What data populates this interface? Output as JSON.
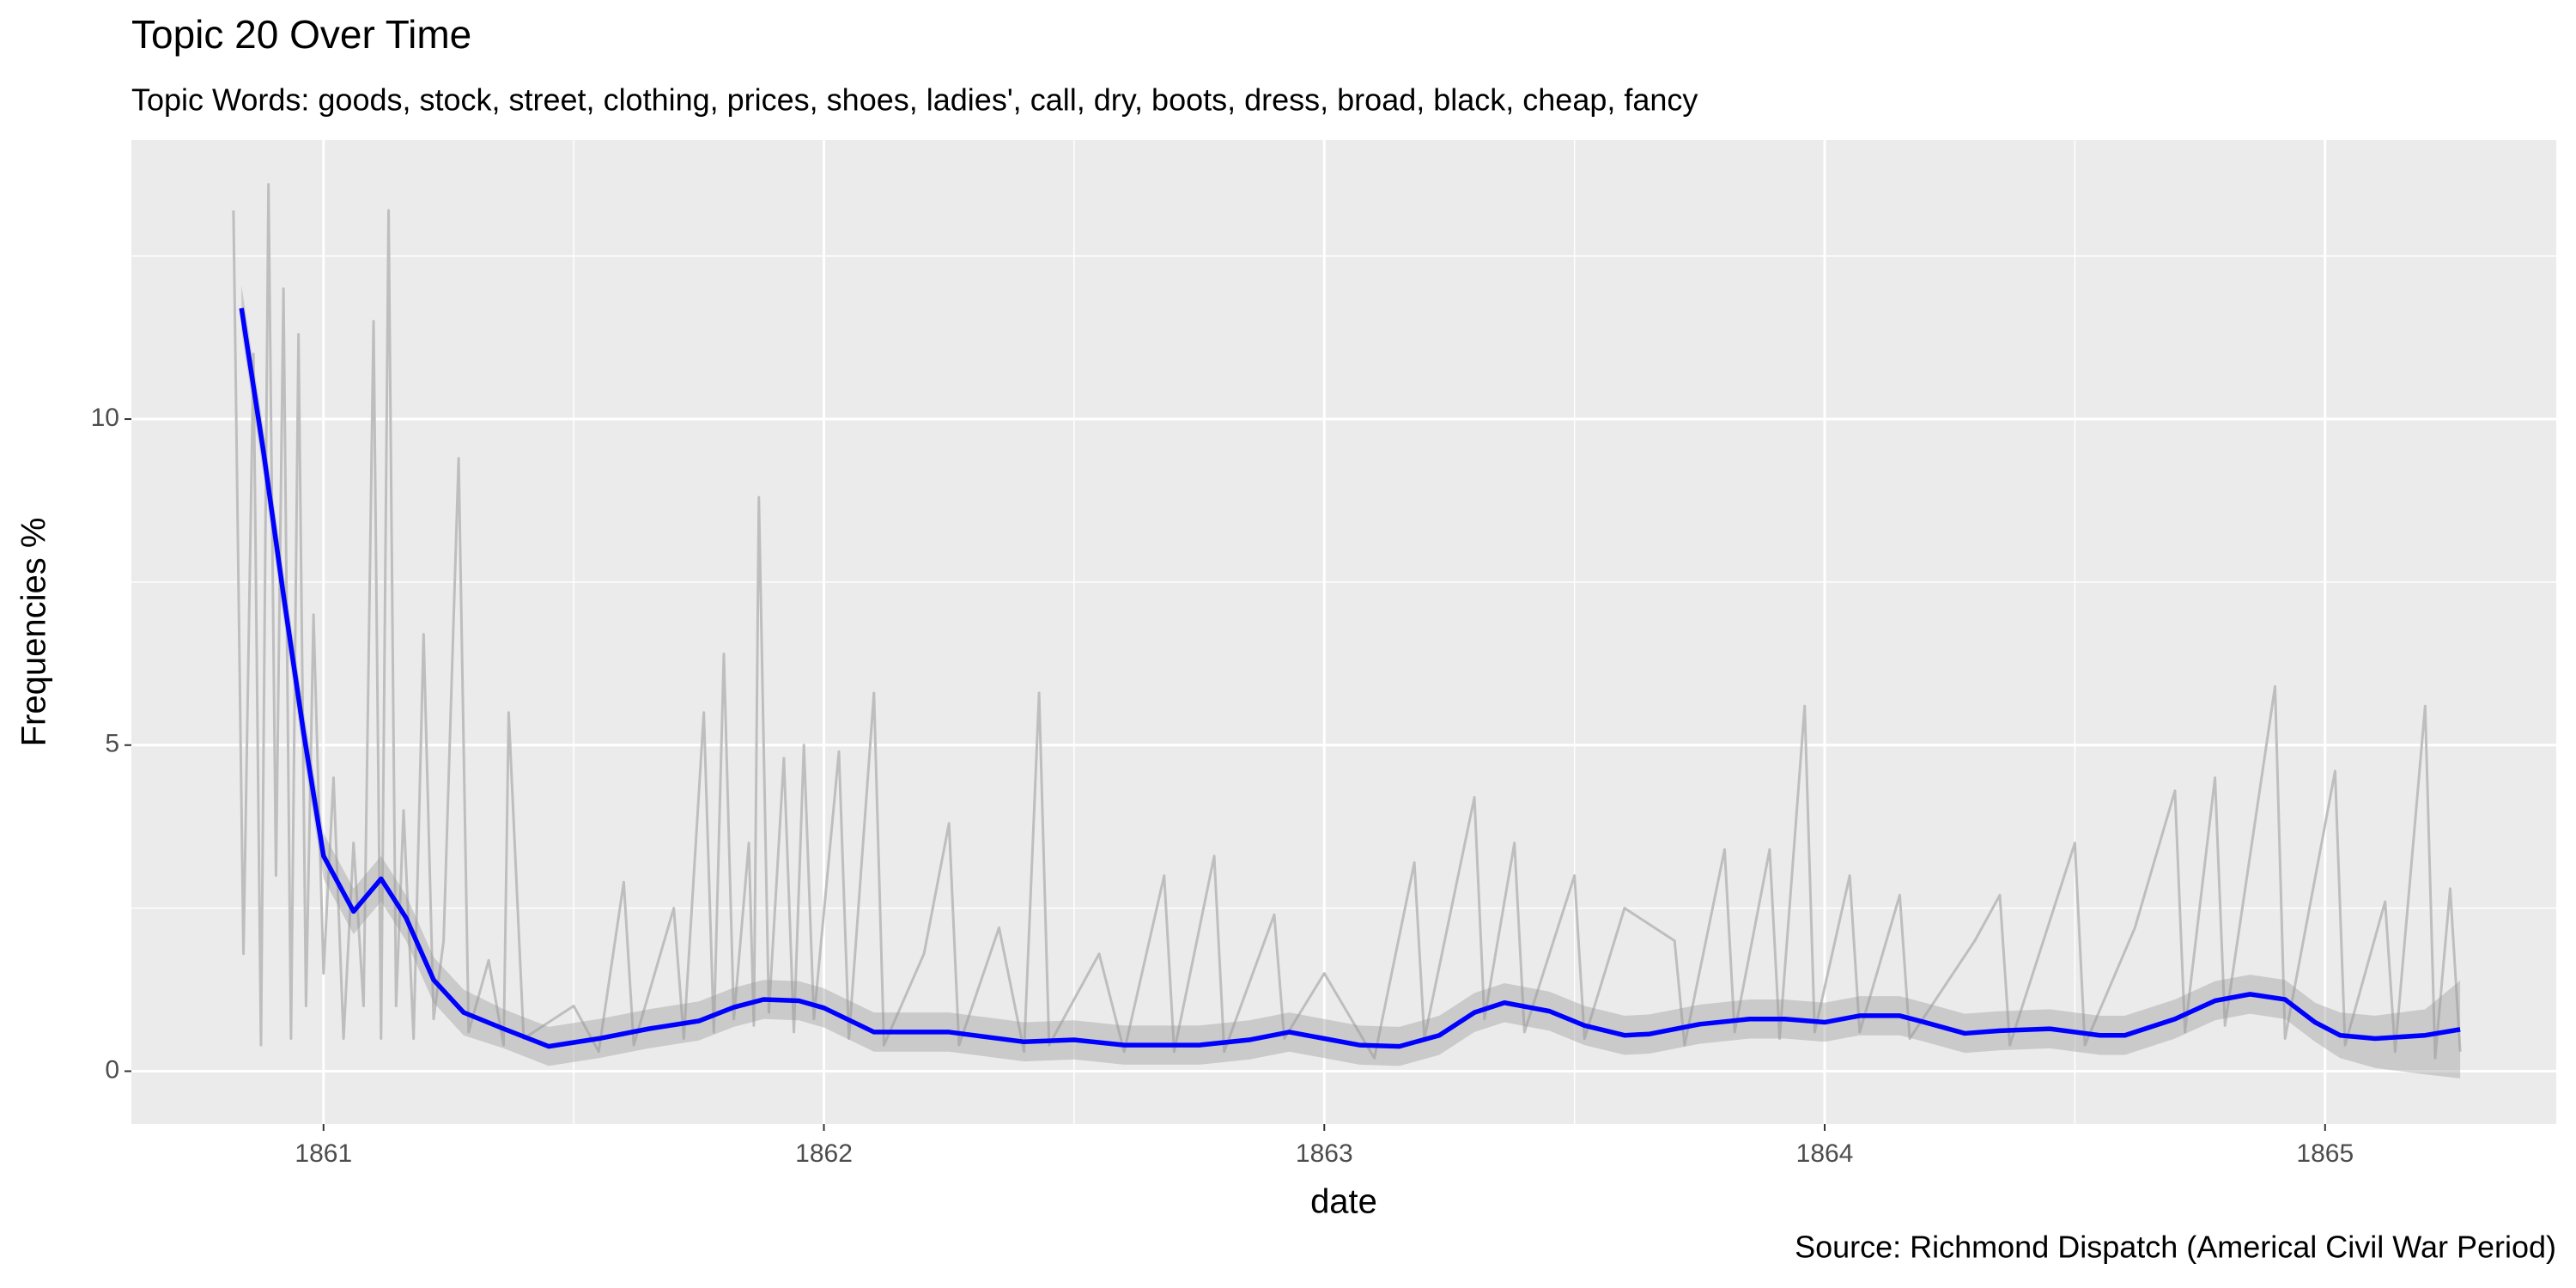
{
  "chart_data": {
    "type": "line",
    "title": "Topic 20 Over Time",
    "subtitle": "Topic Words: goods, stock, street, clothing, prices, shoes, ladies', call, dry, boots, dress, broad, black, cheap, fancy",
    "x_label": "date",
    "y_label": "Frequencies %",
    "caption": "Source: Richmond Dispatch (Americal Civil War Period)",
    "xlim": [
      1860.616,
      1865.462
    ],
    "xticks": [
      1861,
      1862,
      1863,
      1864,
      1865
    ],
    "ylim": [
      -0.81,
      14.28
    ],
    "yticks": [
      0,
      5,
      10
    ],
    "grid": true,
    "series": [
      {
        "color": "#BEBEBE",
        "x": [
          1860.82,
          1860.84,
          1860.86,
          1860.875,
          1860.89,
          1860.905,
          1860.92,
          1860.935,
          1860.95,
          1860.965,
          1860.98,
          1861.0,
          1861.02,
          1861.04,
          1861.06,
          1861.08,
          1861.1,
          1861.115,
          1861.13,
          1861.145,
          1861.16,
          1861.18,
          1861.2,
          1861.22,
          1861.24,
          1861.27,
          1861.29,
          1861.33,
          1861.36,
          1861.37,
          1861.4,
          1861.5,
          1861.55,
          1861.6,
          1861.62,
          1861.7,
          1861.72,
          1861.76,
          1861.78,
          1861.8,
          1861.82,
          1861.85,
          1861.86,
          1861.87,
          1861.89,
          1861.92,
          1861.94,
          1861.96,
          1861.98,
          1862.03,
          1862.05,
          1862.1,
          1862.12,
          1862.2,
          1862.25,
          1862.27,
          1862.35,
          1862.4,
          1862.43,
          1862.45,
          1862.55,
          1862.6,
          1862.68,
          1862.7,
          1862.78,
          1862.8,
          1862.9,
          1862.92,
          1863.0,
          1863.1,
          1863.18,
          1863.2,
          1863.3,
          1863.32,
          1863.38,
          1863.4,
          1863.5,
          1863.52,
          1863.6,
          1863.7,
          1863.72,
          1863.8,
          1863.82,
          1863.89,
          1863.91,
          1863.96,
          1863.98,
          1864.05,
          1864.07,
          1864.15,
          1864.17,
          1864.3,
          1864.35,
          1864.37,
          1864.5,
          1864.52,
          1864.62,
          1864.7,
          1864.72,
          1864.78,
          1864.8,
          1864.9,
          1864.92,
          1865.02,
          1865.04,
          1865.12,
          1865.14,
          1865.2,
          1865.22,
          1865.25,
          1865.27
        ],
        "values": [
          13.2,
          1.8,
          11,
          0.4,
          13.6,
          3,
          12,
          0.5,
          11.3,
          1,
          7,
          1.5,
          4.5,
          0.5,
          3.5,
          1,
          11.5,
          0.5,
          13.2,
          1,
          4,
          0.5,
          6.7,
          0.8,
          2,
          9.4,
          0.6,
          1.7,
          0.4,
          5.5,
          0.5,
          1,
          0.3,
          2.9,
          0.4,
          2.5,
          0.5,
          5.5,
          0.6,
          6.4,
          0.8,
          3.5,
          0.7,
          8.8,
          0.9,
          4.8,
          0.6,
          5.0,
          0.8,
          4.9,
          0.5,
          5.8,
          0.4,
          1.8,
          3.8,
          0.4,
          2.2,
          0.3,
          5.8,
          0.4,
          1.8,
          0.3,
          3.0,
          0.3,
          3.3,
          0.3,
          2.4,
          0.5,
          1.5,
          0.2,
          3.2,
          0.5,
          4.2,
          0.8,
          3.5,
          0.6,
          3.0,
          0.5,
          2.5,
          2.0,
          0.4,
          3.4,
          0.6,
          3.4,
          0.5,
          5.6,
          0.6,
          3.0,
          0.6,
          2.7,
          0.5,
          2.0,
          2.7,
          0.4,
          3.5,
          0.4,
          2.2,
          4.3,
          0.6,
          4.5,
          0.7,
          5.9,
          0.5,
          4.6,
          0.4,
          2.6,
          0.3,
          5.6,
          0.2,
          2.8,
          0.3
        ]
      },
      {
        "color": "#0000FF",
        "x": [
          1860.836,
          1860.88,
          1860.92,
          1860.96,
          1861.0,
          1861.06,
          1861.115,
          1861.165,
          1861.22,
          1861.28,
          1861.36,
          1861.45,
          1861.55,
          1861.65,
          1861.75,
          1861.82,
          1861.88,
          1861.95,
          1862.0,
          1862.1,
          1862.25,
          1862.4,
          1862.5,
          1862.6,
          1862.75,
          1862.85,
          1862.93,
          1863.0,
          1863.07,
          1863.15,
          1863.23,
          1863.3,
          1863.36,
          1863.45,
          1863.52,
          1863.6,
          1863.65,
          1863.75,
          1863.85,
          1863.92,
          1864.0,
          1864.07,
          1864.15,
          1864.2,
          1864.28,
          1864.35,
          1864.45,
          1864.55,
          1864.6,
          1864.7,
          1864.78,
          1864.85,
          1864.92,
          1864.98,
          1865.03,
          1865.1,
          1865.2,
          1865.27
        ],
        "values": [
          11.7,
          9.5,
          7.3,
          5.2,
          3.3,
          2.45,
          2.95,
          2.35,
          1.4,
          0.9,
          0.65,
          0.38,
          0.5,
          0.65,
          0.77,
          0.98,
          1.1,
          1.08,
          0.97,
          0.6,
          0.6,
          0.45,
          0.48,
          0.4,
          0.4,
          0.48,
          0.6,
          0.5,
          0.4,
          0.38,
          0.55,
          0.9,
          1.05,
          0.92,
          0.7,
          0.55,
          0.57,
          0.72,
          0.8,
          0.8,
          0.75,
          0.85,
          0.85,
          0.75,
          0.58,
          0.62,
          0.65,
          0.55,
          0.55,
          0.8,
          1.08,
          1.18,
          1.1,
          0.75,
          0.55,
          0.5,
          0.55,
          0.64
        ],
        "ribbon_color": "#999999",
        "lower": [
          11.35,
          9.15,
          6.95,
          4.85,
          2.95,
          2.1,
          2.6,
          2.0,
          1.05,
          0.55,
          0.35,
          0.08,
          0.2,
          0.35,
          0.47,
          0.68,
          0.8,
          0.78,
          0.67,
          0.3,
          0.3,
          0.15,
          0.18,
          0.1,
          0.1,
          0.18,
          0.3,
          0.2,
          0.1,
          0.08,
          0.25,
          0.6,
          0.75,
          0.62,
          0.4,
          0.25,
          0.27,
          0.42,
          0.5,
          0.5,
          0.45,
          0.55,
          0.55,
          0.45,
          0.28,
          0.32,
          0.35,
          0.25,
          0.25,
          0.5,
          0.78,
          0.88,
          0.8,
          0.45,
          0.2,
          0.05,
          -0.05,
          -0.11
        ],
        "upper": [
          12.05,
          9.85,
          7.65,
          5.55,
          3.65,
          2.8,
          3.3,
          2.7,
          1.75,
          1.25,
          0.95,
          0.68,
          0.8,
          0.95,
          1.07,
          1.28,
          1.4,
          1.38,
          1.27,
          0.9,
          0.9,
          0.75,
          0.78,
          0.7,
          0.7,
          0.78,
          0.9,
          0.8,
          0.7,
          0.68,
          0.85,
          1.2,
          1.35,
          1.22,
          1.0,
          0.85,
          0.87,
          1.02,
          1.1,
          1.1,
          1.05,
          1.15,
          1.15,
          1.05,
          0.88,
          0.92,
          0.95,
          0.85,
          0.85,
          1.1,
          1.38,
          1.48,
          1.4,
          1.05,
          0.9,
          0.85,
          0.95,
          1.39
        ]
      }
    ]
  }
}
